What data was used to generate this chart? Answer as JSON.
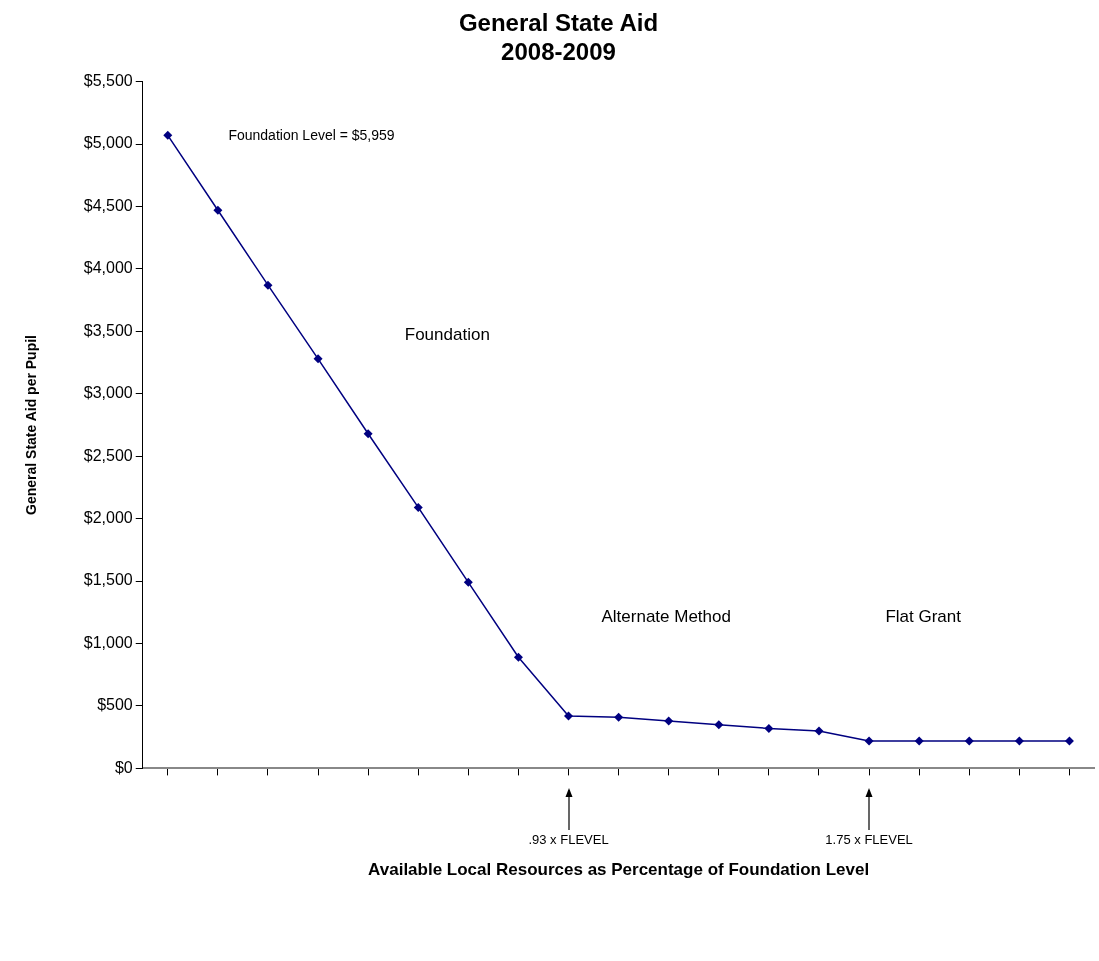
{
  "chart_data": {
    "type": "line",
    "title": "General State Aid",
    "subtitle": "2008-2009",
    "xlabel": "Available Local Resources as Percentage of Foundation Level",
    "ylabel": "General State Aid per Pupil",
    "categories": [
      null,
      null,
      null,
      null,
      null,
      null,
      null,
      null,
      null,
      null,
      null,
      null,
      null,
      null,
      null,
      null,
      null,
      null,
      null
    ],
    "series": [
      {
        "color": "#000080",
        "values": [
          5070,
          4470,
          3870,
          3280,
          2680,
          2090,
          1490,
          890,
          420,
          410,
          380,
          350,
          320,
          300,
          220,
          220,
          220,
          220,
          220
        ]
      }
    ],
    "ylim": [
      0,
      5500
    ],
    "yticks": [
      {
        "value": 0,
        "label": "$0"
      },
      {
        "value": 500,
        "label": "$500"
      },
      {
        "value": 1000,
        "label": "$1,000"
      },
      {
        "value": 1500,
        "label": "$1,500"
      },
      {
        "value": 2000,
        "label": "$2,000"
      },
      {
        "value": 2500,
        "label": "$2,500"
      },
      {
        "value": 3000,
        "label": "$3,000"
      },
      {
        "value": 3500,
        "label": "$3,500"
      },
      {
        "value": 4000,
        "label": "$4,000"
      },
      {
        "value": 4500,
        "label": "$4,500"
      },
      {
        "value": 5000,
        "label": "$5,000"
      },
      {
        "value": 5500,
        "label": "$5,500"
      }
    ],
    "grid": false,
    "legend": false,
    "marker": "diamond",
    "line_style": "solid",
    "annotations": [
      "Foundation Level = $5,959",
      "Foundation",
      "Alternate Method",
      "Flat Grant",
      ".93 x FLEVEL",
      "1.75 x FLEVEL"
    ]
  }
}
